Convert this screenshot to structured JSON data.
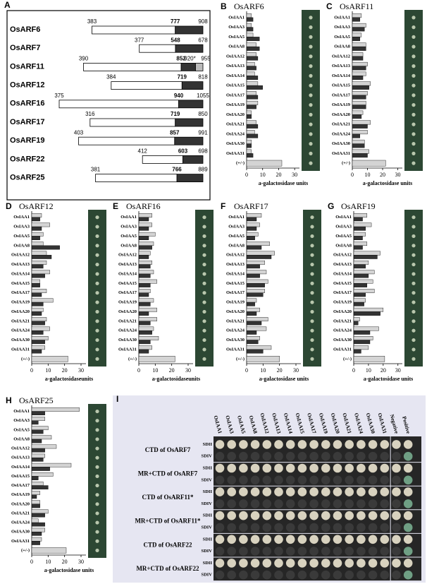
{
  "panel_a": {
    "label": "A",
    "rows": [
      {
        "name": "OsARF6",
        "start": 383,
        "mid": 777,
        "end": 908
      },
      {
        "name": "OsARF7",
        "start": 377,
        "mid": 548,
        "end": 678
      },
      {
        "name": "OsARF11",
        "start": 390,
        "mid": 852,
        "star": {
          "value": 920,
          "label": "920*"
        },
        "end": 955
      },
      {
        "name": "OsARF12",
        "start": 384,
        "mid": 719,
        "end": 818
      },
      {
        "name": "OsARF16",
        "start": 375,
        "mid": 940,
        "end": 1055
      },
      {
        "name": "OsARF17",
        "start": 316,
        "mid": 719,
        "end": 850
      },
      {
        "name": "OsARF19",
        "start": 403,
        "mid": 857,
        "end": 991
      },
      {
        "name": "OsARF22",
        "start": 412,
        "mid": 603,
        "end": 698
      },
      {
        "name": "OsARF25",
        "start": 381,
        "mid": 766,
        "end": 889
      }
    ]
  },
  "chart_data": [
    {
      "type": "bar",
      "panel": "B",
      "title": "OsARF6",
      "x_label": "a-galactosidase units",
      "categories": [
        "OsIAA1",
        "OsIAA3",
        "OsIAA5",
        "OsIAA8",
        "OsIAA12",
        "OsIAA13",
        "OsIAA14",
        "OsIAA15",
        "OsIAA17",
        "OsIAA19",
        "OsIAA20",
        "OsIAA21",
        "OsIAA24",
        "OsIAA30",
        "OsIAA31",
        "(+/-)"
      ],
      "series": [
        {
          "color": "#d4d4d4",
          "values": [
            3,
            3,
            4,
            6,
            6,
            5,
            5,
            7,
            6,
            7,
            3,
            6,
            5,
            3,
            3,
            22
          ]
        },
        {
          "color": "#333333",
          "values": [
            4,
            4,
            8,
            8,
            7,
            6,
            7,
            10,
            7,
            6,
            3,
            7,
            7,
            3,
            4,
            null
          ]
        }
      ],
      "xlim": [
        0,
        33
      ],
      "xticks": [
        0,
        10,
        20,
        30
      ]
    },
    {
      "type": "bar",
      "panel": "C",
      "title": "OsARF11",
      "x_label": "a-galactosidase units",
      "categories": [
        "OsIAA1",
        "OsIAA3",
        "OsIAA5",
        "OsIAA8",
        "OsIAA12",
        "OsIAA13",
        "OsIAA14",
        "OsIAA15",
        "OsIAA17",
        "OsIAA19",
        "OsIAA20",
        "OsIAA21",
        "OsIAA24",
        "OsIAA30",
        "OsIAA31",
        "(+/-)"
      ],
      "series": [
        {
          "color": "#d4d4d4",
          "values": [
            6,
            9,
            6,
            9,
            7,
            10,
            9,
            12,
            10,
            9,
            7,
            12,
            10,
            8,
            11,
            22
          ]
        },
        {
          "color": "#333333",
          "values": [
            5,
            8,
            5,
            9,
            7,
            9,
            7,
            11,
            9,
            9,
            6,
            10,
            5,
            8,
            10,
            null
          ]
        }
      ],
      "xlim": [
        0,
        33
      ],
      "xticks": [
        0,
        10,
        20,
        30
      ]
    },
    {
      "type": "bar",
      "panel": "D",
      "title": "OsARF12",
      "x_label": "a-galactosidaseunits",
      "categories": [
        "OsIAA1",
        "OsIAA3",
        "OsIAA5",
        "OsIAA8",
        "OsIAA12",
        "OsIAA13",
        "OsIAA14",
        "OsIAA15",
        "OsIAA17",
        "OsIAA19",
        "OsIAA20",
        "OsIAA21",
        "OsIAA24",
        "OsIAA30",
        "OsIAA31",
        "(+/-)"
      ],
      "series": [
        {
          "color": "#d4d4d4",
          "values": [
            6,
            11,
            7,
            7,
            9,
            9,
            11,
            5,
            9,
            13,
            7,
            9,
            11,
            10,
            8,
            22
          ]
        },
        {
          "color": "#333333",
          "values": [
            5,
            6,
            5,
            17,
            12,
            7,
            8,
            5,
            6,
            7,
            6,
            8,
            7,
            8,
            6,
            null
          ]
        }
      ],
      "xlim": [
        0,
        33
      ],
      "xticks": [
        0,
        10,
        20,
        30
      ]
    },
    {
      "type": "bar",
      "panel": "E",
      "title": "OsARF16",
      "x_label": "a-galactosidaseunits",
      "categories": [
        "OsIAA1",
        "OsIAA3",
        "OsIAA5",
        "OsIAA8",
        "OsIAA12",
        "OsIAA13",
        "OsIAA14",
        "OsIAA15",
        "OsIAA17",
        "OsIAA19",
        "OsIAA20",
        "OsIAA21",
        "OsIAA24",
        "OsIAA30",
        "OsIAA31",
        "(+/-)"
      ],
      "series": [
        {
          "color": "#d4d4d4",
          "values": [
            8,
            8,
            10,
            9,
            7,
            8,
            9,
            11,
            7,
            9,
            11,
            11,
            9,
            12,
            8,
            22
          ]
        },
        {
          "color": "#333333",
          "values": [
            6,
            6,
            6,
            8,
            6,
            7,
            7,
            7,
            6,
            7,
            6,
            7,
            8,
            7,
            6,
            null
          ]
        }
      ],
      "xlim": [
        0,
        33
      ],
      "xticks": [
        0,
        10,
        20,
        30
      ]
    },
    {
      "type": "bar",
      "panel": "F",
      "title": "OsARF17",
      "x_label": "a-galactosidase units",
      "categories": [
        "OsIAA1",
        "OsIAA3",
        "OsIAA5",
        "OsIAA8",
        "OsIAA12",
        "OsIAA13",
        "OsIAA14",
        "OsIAA15",
        "OsIAA17",
        "OsIAA19",
        "OsIAA20",
        "OsIAA21",
        "OsIAA24",
        "OsIAA30",
        "OsIAA31",
        "(+/-)"
      ],
      "series": [
        {
          "color": "#d4d4d4",
          "values": [
            9,
            8,
            7,
            14,
            17,
            11,
            12,
            13,
            11,
            6,
            8,
            13,
            12,
            8,
            15,
            20
          ]
        },
        {
          "color": "#333333",
          "values": [
            6,
            6,
            5,
            9,
            15,
            8,
            8,
            11,
            10,
            5,
            6,
            9,
            6,
            7,
            10,
            null
          ]
        }
      ],
      "xlim": [
        0,
        33
      ],
      "xticks": [
        0,
        10,
        20,
        30
      ]
    },
    {
      "type": "bar",
      "panel": "G",
      "title": "OsARF19",
      "x_label": "a-galactosidase units",
      "categories": [
        "OsIAA1",
        "OsIAA3",
        "OsIAA5",
        "OsIAA8",
        "OsIAA12",
        "OsIAA13",
        "OsIAA14",
        "OsIAA15",
        "OsIAA17",
        "OsIAA19",
        "OsIAA20",
        "OsIAA21",
        "OsIAA24",
        "OsIAA30",
        "OsIAA31",
        "(+/-)"
      ],
      "series": [
        {
          "color": "#d4d4d4",
          "values": [
            9,
            12,
            8,
            9,
            18,
            10,
            14,
            13,
            14,
            8,
            20,
            4,
            17,
            13,
            10,
            21
          ]
        },
        {
          "color": "#333333",
          "values": [
            6,
            8,
            6,
            6,
            16,
            8,
            10,
            9,
            8,
            7,
            18,
            3,
            11,
            11,
            5,
            null
          ]
        }
      ],
      "xlim": [
        0,
        33
      ],
      "xticks": [
        0,
        10,
        20,
        30
      ]
    },
    {
      "type": "bar",
      "panel": "H",
      "title": "OsARF25",
      "x_label": "a-galactosidase units",
      "categories": [
        "OsIAA1",
        "OsIAA3",
        "OsIAA5",
        "OsIAA8",
        "OsIAA12",
        "OsIAA13",
        "OsIAA14",
        "OsIAA15",
        "OsIAA17",
        "OsIAA19",
        "OsIAA20",
        "OsIAA21",
        "OsIAA24",
        "OsIAA30",
        "OsIAA31",
        "(+/-)"
      ],
      "series": [
        {
          "color": "#d4d4d4",
          "values": [
            29,
            8,
            10,
            12,
            15,
            8,
            24,
            13,
            7,
            5,
            5,
            10,
            4,
            8,
            6,
            21
          ]
        },
        {
          "color": "#333333",
          "values": [
            8,
            4,
            7,
            6,
            8,
            7,
            11,
            4,
            10,
            3,
            5,
            8,
            8,
            6,
            5,
            null
          ]
        }
      ],
      "xlim": [
        0,
        33
      ],
      "xticks": [
        0,
        10,
        20,
        30
      ]
    }
  ],
  "panel_i": {
    "label": "I",
    "columns": [
      "OsIAA1",
      "OsIAA3",
      "OsIAA5",
      "OsIAA8",
      "OsIAA12",
      "OsIAA13",
      "OsIAA14",
      "OsIAA15",
      "OsIAA17",
      "OsIAA19",
      "OsIAA20",
      "OsIAA21",
      "OsIAA24",
      "OsIAA30",
      "OsIAA31",
      "Negative",
      "Positive"
    ],
    "rows": [
      "CTD of OsARF7",
      "MR+CTD of OsARF7",
      "CTD of OsARF11*",
      "MR+CTD of OsARF11*",
      "CTD of OsARF22",
      "MR+CTD of OsARF22"
    ],
    "media": [
      "SDII",
      "SDIV"
    ]
  }
}
